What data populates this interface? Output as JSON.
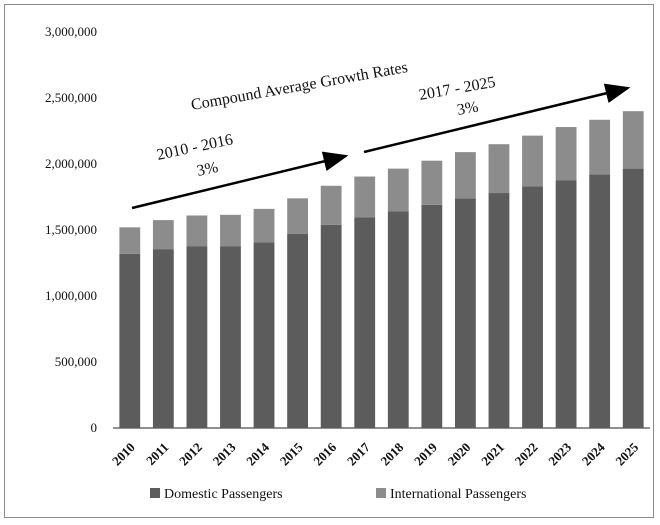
{
  "chart_data": {
    "type": "bar",
    "stacked": true,
    "title": "",
    "xlabel": "",
    "ylabel": "",
    "categories": [
      "2010",
      "2011",
      "2012",
      "2013",
      "2014",
      "2015",
      "2016",
      "2017",
      "2018",
      "2019",
      "2020",
      "2021",
      "2022",
      "2023",
      "2024",
      "2025"
    ],
    "series": [
      {
        "name": "Domestic Passengers",
        "color": "#5c5c5c",
        "values": [
          1320000,
          1355000,
          1375000,
          1375000,
          1405000,
          1470000,
          1540000,
          1595000,
          1640000,
          1690000,
          1740000,
          1780000,
          1830000,
          1875000,
          1920000,
          1965000
        ]
      },
      {
        "name": "International Passengers",
        "color": "#8c8c8c",
        "values": [
          200000,
          220000,
          235000,
          240000,
          255000,
          270000,
          295000,
          310000,
          325000,
          335000,
          350000,
          370000,
          385000,
          405000,
          415000,
          435000
        ]
      }
    ],
    "ylim": [
      0,
      3000000
    ],
    "yticks": [
      "0",
      "500,000",
      "1,000,000",
      "1,500,000",
      "2,000,000",
      "2,500,000",
      "3,000,000"
    ],
    "grid": false,
    "legend_position": "bottom",
    "annotations": {
      "heading": "Compound Average Growth Rates",
      "period1_label": "2010 - 2016",
      "period1_rate": "3%",
      "period2_label": "2017 - 2025",
      "period2_rate": "3%"
    }
  }
}
